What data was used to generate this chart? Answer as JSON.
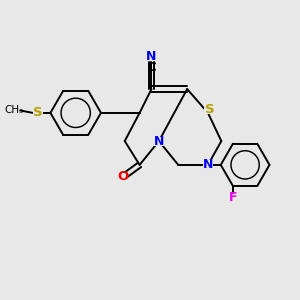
{
  "bg_color": "#e8e8e8",
  "atom_colors": {
    "S": "#b8a000",
    "N": "#0000ee",
    "O": "#ee0000",
    "F": "#ee00ee",
    "C": "#000000"
  },
  "bond_color": "#000000",
  "bond_width": 1.4,
  "fig_size": [
    3.0,
    3.0
  ],
  "dpi": 100
}
